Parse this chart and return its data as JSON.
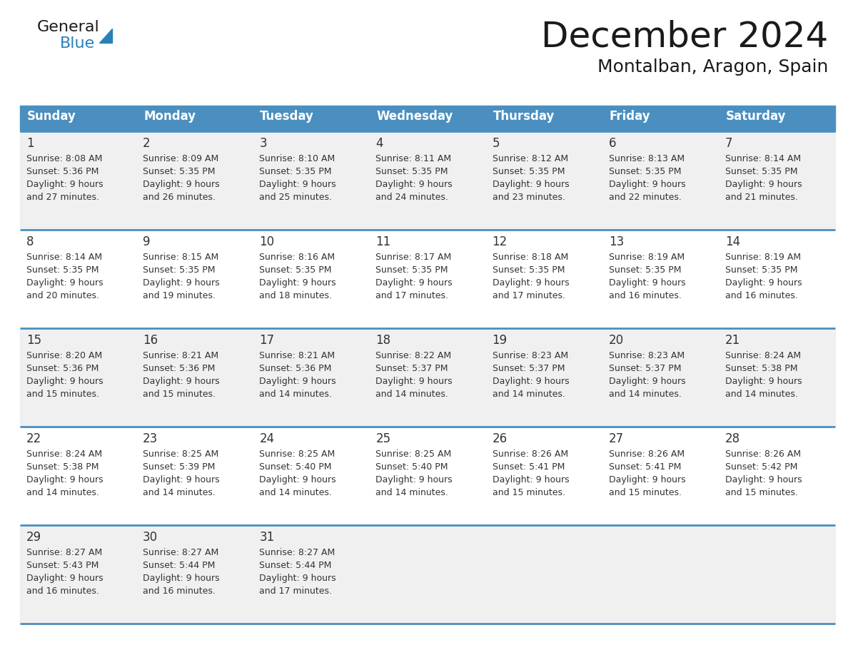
{
  "title": "December 2024",
  "subtitle": "Montalban, Aragon, Spain",
  "header_bg_color": "#4A8FC0",
  "header_text_color": "#FFFFFF",
  "row_colors": [
    "#F0F0F0",
    "#FFFFFF",
    "#F0F0F0",
    "#FFFFFF",
    "#F0F0F0"
  ],
  "border_color": "#4A8FC0",
  "text_color": "#333333",
  "days_of_week": [
    "Sunday",
    "Monday",
    "Tuesday",
    "Wednesday",
    "Thursday",
    "Friday",
    "Saturday"
  ],
  "calendar_data": [
    [
      {
        "day": 1,
        "sunrise": "8:08 AM",
        "sunset": "5:36 PM",
        "daylight_hours": 9,
        "daylight_minutes": 27
      },
      {
        "day": 2,
        "sunrise": "8:09 AM",
        "sunset": "5:35 PM",
        "daylight_hours": 9,
        "daylight_minutes": 26
      },
      {
        "day": 3,
        "sunrise": "8:10 AM",
        "sunset": "5:35 PM",
        "daylight_hours": 9,
        "daylight_minutes": 25
      },
      {
        "day": 4,
        "sunrise": "8:11 AM",
        "sunset": "5:35 PM",
        "daylight_hours": 9,
        "daylight_minutes": 24
      },
      {
        "day": 5,
        "sunrise": "8:12 AM",
        "sunset": "5:35 PM",
        "daylight_hours": 9,
        "daylight_minutes": 23
      },
      {
        "day": 6,
        "sunrise": "8:13 AM",
        "sunset": "5:35 PM",
        "daylight_hours": 9,
        "daylight_minutes": 22
      },
      {
        "day": 7,
        "sunrise": "8:14 AM",
        "sunset": "5:35 PM",
        "daylight_hours": 9,
        "daylight_minutes": 21
      }
    ],
    [
      {
        "day": 8,
        "sunrise": "8:14 AM",
        "sunset": "5:35 PM",
        "daylight_hours": 9,
        "daylight_minutes": 20
      },
      {
        "day": 9,
        "sunrise": "8:15 AM",
        "sunset": "5:35 PM",
        "daylight_hours": 9,
        "daylight_minutes": 19
      },
      {
        "day": 10,
        "sunrise": "8:16 AM",
        "sunset": "5:35 PM",
        "daylight_hours": 9,
        "daylight_minutes": 18
      },
      {
        "day": 11,
        "sunrise": "8:17 AM",
        "sunset": "5:35 PM",
        "daylight_hours": 9,
        "daylight_minutes": 17
      },
      {
        "day": 12,
        "sunrise": "8:18 AM",
        "sunset": "5:35 PM",
        "daylight_hours": 9,
        "daylight_minutes": 17
      },
      {
        "day": 13,
        "sunrise": "8:19 AM",
        "sunset": "5:35 PM",
        "daylight_hours": 9,
        "daylight_minutes": 16
      },
      {
        "day": 14,
        "sunrise": "8:19 AM",
        "sunset": "5:35 PM",
        "daylight_hours": 9,
        "daylight_minutes": 16
      }
    ],
    [
      {
        "day": 15,
        "sunrise": "8:20 AM",
        "sunset": "5:36 PM",
        "daylight_hours": 9,
        "daylight_minutes": 15
      },
      {
        "day": 16,
        "sunrise": "8:21 AM",
        "sunset": "5:36 PM",
        "daylight_hours": 9,
        "daylight_minutes": 15
      },
      {
        "day": 17,
        "sunrise": "8:21 AM",
        "sunset": "5:36 PM",
        "daylight_hours": 9,
        "daylight_minutes": 14
      },
      {
        "day": 18,
        "sunrise": "8:22 AM",
        "sunset": "5:37 PM",
        "daylight_hours": 9,
        "daylight_minutes": 14
      },
      {
        "day": 19,
        "sunrise": "8:23 AM",
        "sunset": "5:37 PM",
        "daylight_hours": 9,
        "daylight_minutes": 14
      },
      {
        "day": 20,
        "sunrise": "8:23 AM",
        "sunset": "5:37 PM",
        "daylight_hours": 9,
        "daylight_minutes": 14
      },
      {
        "day": 21,
        "sunrise": "8:24 AM",
        "sunset": "5:38 PM",
        "daylight_hours": 9,
        "daylight_minutes": 14
      }
    ],
    [
      {
        "day": 22,
        "sunrise": "8:24 AM",
        "sunset": "5:38 PM",
        "daylight_hours": 9,
        "daylight_minutes": 14
      },
      {
        "day": 23,
        "sunrise": "8:25 AM",
        "sunset": "5:39 PM",
        "daylight_hours": 9,
        "daylight_minutes": 14
      },
      {
        "day": 24,
        "sunrise": "8:25 AM",
        "sunset": "5:40 PM",
        "daylight_hours": 9,
        "daylight_minutes": 14
      },
      {
        "day": 25,
        "sunrise": "8:25 AM",
        "sunset": "5:40 PM",
        "daylight_hours": 9,
        "daylight_minutes": 14
      },
      {
        "day": 26,
        "sunrise": "8:26 AM",
        "sunset": "5:41 PM",
        "daylight_hours": 9,
        "daylight_minutes": 15
      },
      {
        "day": 27,
        "sunrise": "8:26 AM",
        "sunset": "5:41 PM",
        "daylight_hours": 9,
        "daylight_minutes": 15
      },
      {
        "day": 28,
        "sunrise": "8:26 AM",
        "sunset": "5:42 PM",
        "daylight_hours": 9,
        "daylight_minutes": 15
      }
    ],
    [
      {
        "day": 29,
        "sunrise": "8:27 AM",
        "sunset": "5:43 PM",
        "daylight_hours": 9,
        "daylight_minutes": 16
      },
      {
        "day": 30,
        "sunrise": "8:27 AM",
        "sunset": "5:44 PM",
        "daylight_hours": 9,
        "daylight_minutes": 16
      },
      {
        "day": 31,
        "sunrise": "8:27 AM",
        "sunset": "5:44 PM",
        "daylight_hours": 9,
        "daylight_minutes": 17
      },
      null,
      null,
      null,
      null
    ]
  ]
}
